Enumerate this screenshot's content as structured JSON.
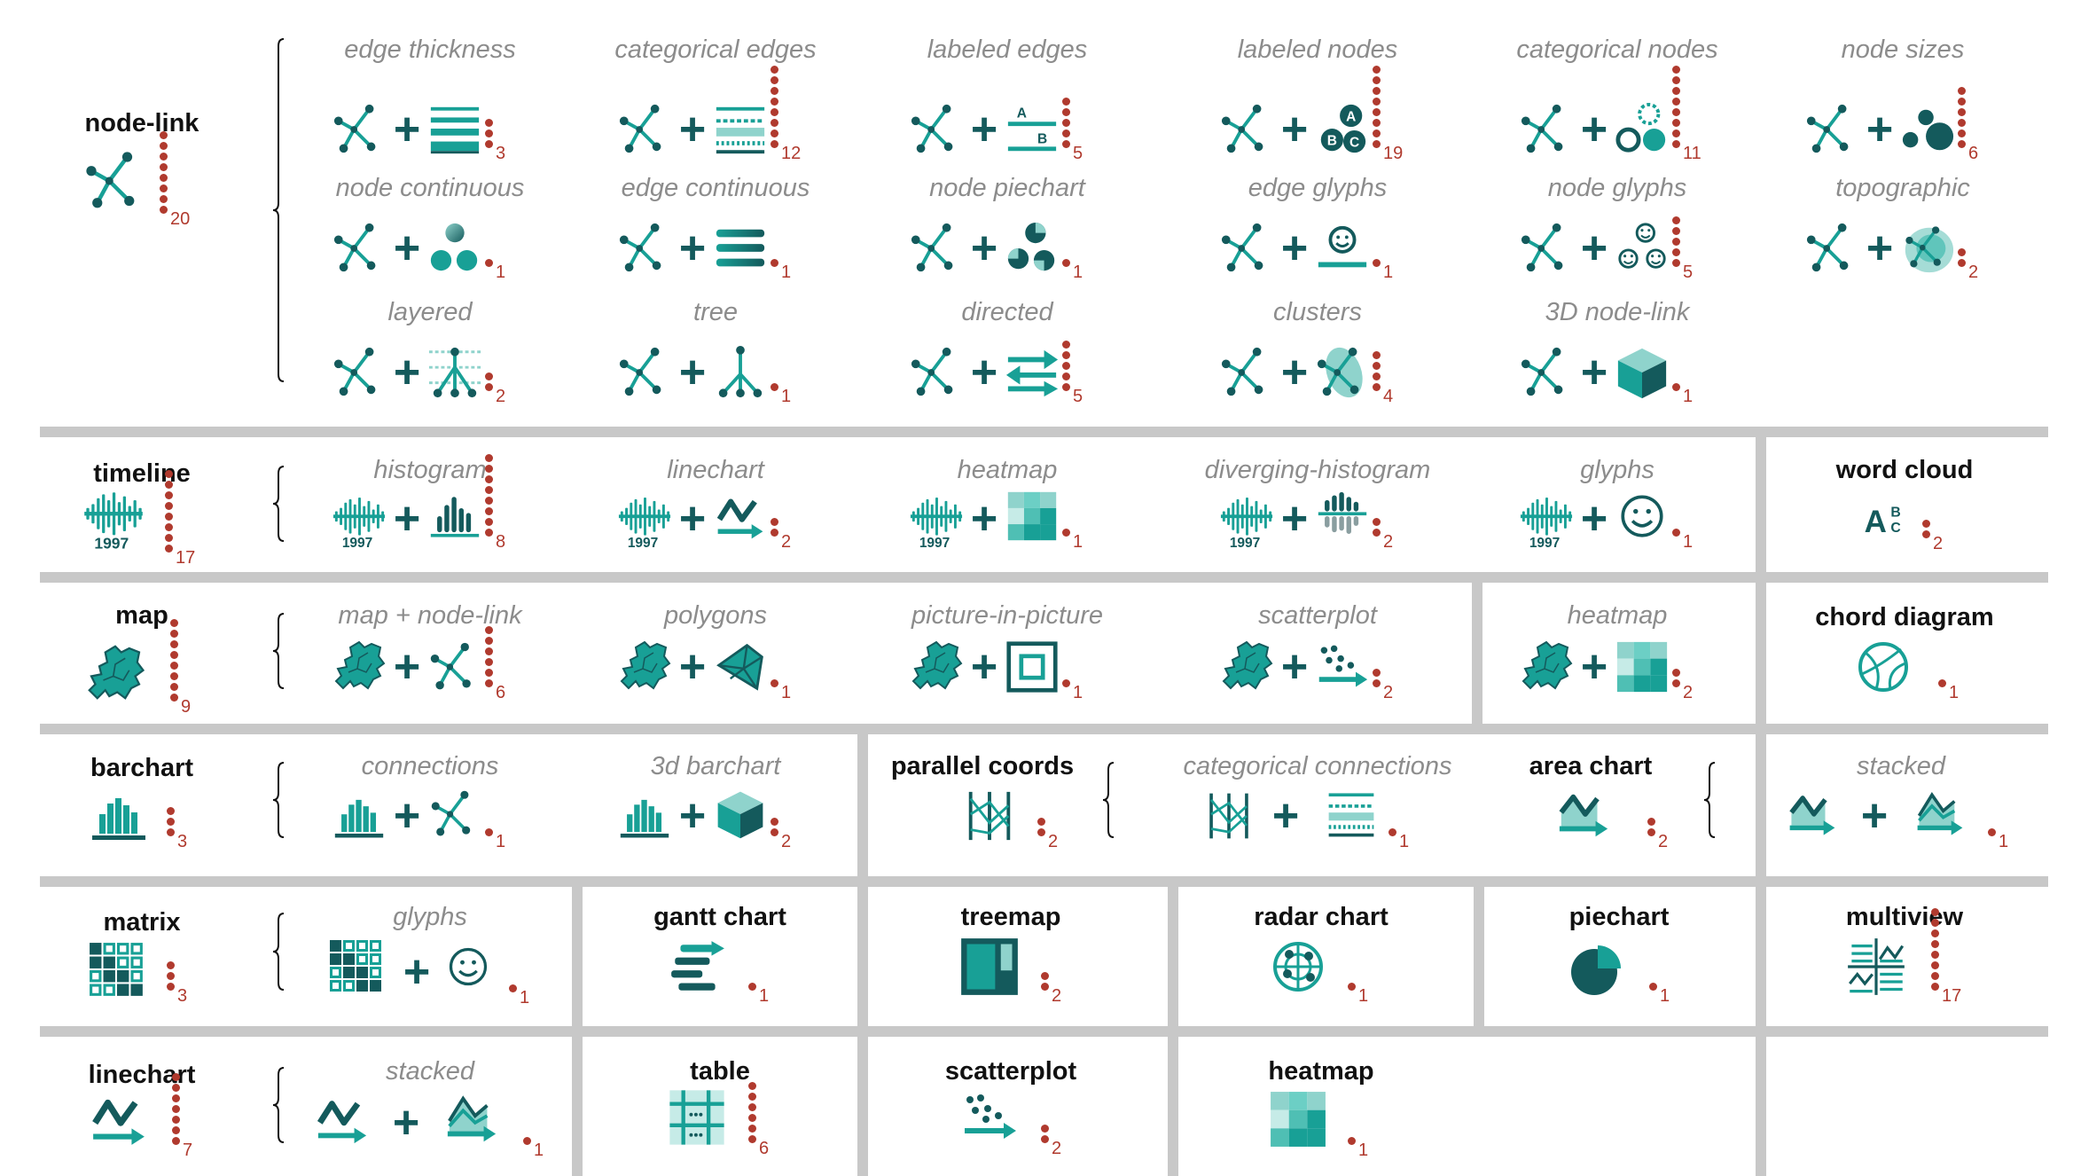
{
  "colors": {
    "teal": "#18a096",
    "dark": "#145a5c",
    "light": "#8fd3cc",
    "mid": "#4fbfb4",
    "dot": "#b03a2e",
    "sep": "#c8c8c8"
  },
  "icons": [
    "node-link-icon",
    "edge-thickness-icon",
    "categorical-edges-icon",
    "labeled-edges-icon",
    "labeled-nodes-icon",
    "categorical-nodes-icon",
    "node-sizes-icon",
    "node-continuous-icon",
    "edge-continuous-icon",
    "node-piechart-icon",
    "edge-glyphs-icon",
    "node-glyphs-icon",
    "topographic-icon",
    "layered-icon",
    "tree-icon",
    "directed-icon",
    "clusters-icon",
    "cube-icon",
    "timeline-icon",
    "histogram-icon",
    "linechart-icon",
    "heatmap-icon",
    "diverging-histogram-icon",
    "smiley-icon",
    "word-cloud-icon",
    "map-icon",
    "polygons-icon",
    "picture-in-picture-icon",
    "scatterplot-icon",
    "chord-diagram-icon",
    "barchart-icon",
    "bar3d-icon",
    "parallel-coords-icon",
    "area-chart-icon",
    "stacked-area-icon",
    "matrix-icon",
    "gantt-icon",
    "treemap-icon",
    "radar-icon",
    "piechart-icon",
    "multiview-icon",
    "table-icon"
  ],
  "node_link": {
    "title": "node-link",
    "count": "20",
    "subs": [
      {
        "label": "edge thickness",
        "count": "3"
      },
      {
        "label": "categorical edges",
        "count": "12"
      },
      {
        "label": "labeled edges",
        "count": "5",
        "letters": [
          "A",
          "B"
        ]
      },
      {
        "label": "labeled nodes",
        "count": "19",
        "letters": [
          "A",
          "B",
          "C"
        ]
      },
      {
        "label": "categorical nodes",
        "count": "11"
      },
      {
        "label": "node sizes",
        "count": "6"
      },
      {
        "label": "node continuous",
        "count": "1"
      },
      {
        "label": "edge continuous",
        "count": "1"
      },
      {
        "label": "node piechart",
        "count": "1"
      },
      {
        "label": "edge glyphs",
        "count": "1"
      },
      {
        "label": "node glyphs",
        "count": "5"
      },
      {
        "label": "topographic",
        "count": "2"
      },
      {
        "label": "layered",
        "count": "2"
      },
      {
        "label": "tree",
        "count": "1"
      },
      {
        "label": "directed",
        "count": "5"
      },
      {
        "label": "clusters",
        "count": "4"
      },
      {
        "label": "3D node-link",
        "count": "1"
      }
    ]
  },
  "timeline": {
    "title": "timeline",
    "count": "17",
    "year": "1997",
    "subs": [
      {
        "label": "histogram",
        "count": "8"
      },
      {
        "label": "linechart",
        "count": "2"
      },
      {
        "label": "heatmap",
        "count": "1"
      },
      {
        "label": "diverging-histogram",
        "count": "2"
      },
      {
        "label": "glyphs",
        "count": "1"
      }
    ]
  },
  "word_cloud": {
    "title": "word cloud",
    "count": "2",
    "glyph": "A",
    "glyph_b": "B",
    "glyph_c": "C"
  },
  "map": {
    "title": "map",
    "count": "9",
    "subs": [
      {
        "label": "map + node-link",
        "count": "6"
      },
      {
        "label": "polygons",
        "count": "1"
      },
      {
        "label": "picture-in-picture",
        "count": "1"
      },
      {
        "label": "scatterplot",
        "count": "2"
      },
      {
        "label": "heatmap",
        "count": "2"
      }
    ]
  },
  "chord_diagram": {
    "title": "chord diagram",
    "count": "1"
  },
  "barchart": {
    "title": "barchart",
    "count": "3",
    "subs": [
      {
        "label": "connections",
        "count": "1"
      },
      {
        "label": "3d barchart",
        "count": "2"
      }
    ]
  },
  "parallel_coords": {
    "title": "parallel coords",
    "count": "2",
    "subs": [
      {
        "label": "categorical connections",
        "count": "1"
      }
    ]
  },
  "area_chart": {
    "title": "area chart",
    "count": "2",
    "subs": [
      {
        "label": "stacked",
        "count": "1"
      }
    ]
  },
  "matrix": {
    "title": "matrix",
    "count": "3",
    "subs": [
      {
        "label": "glyphs",
        "count": "1"
      }
    ]
  },
  "gantt_chart": {
    "title": "gantt chart",
    "count": "1"
  },
  "treemap": {
    "title": "treemap",
    "count": "2"
  },
  "radar_chart": {
    "title": "radar chart",
    "count": "1"
  },
  "piechart": {
    "title": "piechart",
    "count": "1"
  },
  "multiview": {
    "title": "multiview",
    "count": "17"
  },
  "linechart": {
    "title": "linechart",
    "count": "7",
    "subs": [
      {
        "label": "stacked",
        "count": "1"
      }
    ]
  },
  "table": {
    "title": "table",
    "count": "6"
  },
  "scatterplot": {
    "title": "scatterplot",
    "count": "2"
  },
  "heatmap": {
    "title": "heatmap",
    "count": "1"
  }
}
